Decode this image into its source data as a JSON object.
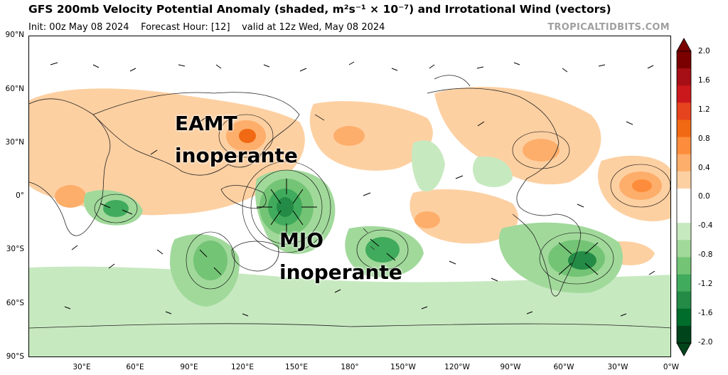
{
  "header": {
    "title": "GFS 200mb Velocity Potential Anomaly (shaded, m²s⁻¹ × 10⁻⁷) and Irrotational Wind (vectors)",
    "init": "Init: 00z May 08 2024",
    "forecast_hour": "Forecast Hour: [12]",
    "valid": "valid at 12z Wed, May 08 2024",
    "site": "TROPICALTIDBITS.COM"
  },
  "axes": {
    "lat_labels": [
      "90°N",
      "60°N",
      "30°N",
      "0°",
      "30°S",
      "60°S",
      "90°S"
    ],
    "lon_labels": [
      "30°E",
      "60°E",
      "90°E",
      "120°E",
      "150°E",
      "180°",
      "150°W",
      "120°W",
      "90°W",
      "60°W",
      "30°W",
      "0°W"
    ]
  },
  "annotations": {
    "eamt_line1": "EAMT",
    "eamt_line2": "inoperante",
    "mjo_line1": "MJO",
    "mjo_line2": "inoperante"
  },
  "colorbar": {
    "labels": [
      "2.0",
      "1.6",
      "1.2",
      "0.8",
      "0.4",
      "0.0",
      "-0.4",
      "-0.8",
      "-1.2",
      "-1.6",
      "-2.0"
    ],
    "colors": [
      "#7a0000",
      "#a50f15",
      "#cb181d",
      "#e6441f",
      "#f16913",
      "#fd8d3c",
      "#fdae6b",
      "#fdd0a2",
      "#ffffff",
      "#ffffff",
      "#c7e9c0",
      "#a1d99b",
      "#74c476",
      "#41ab5d",
      "#238b45",
      "#006d2c",
      "#00441b"
    ]
  },
  "map": {
    "positive_color": "#fdd0a2",
    "positive_strong": "#fdae6b",
    "positive_max": "#f16913",
    "negative_color": "#c7e9c0",
    "negative_strong": "#74c476",
    "negative_max": "#238b45"
  }
}
